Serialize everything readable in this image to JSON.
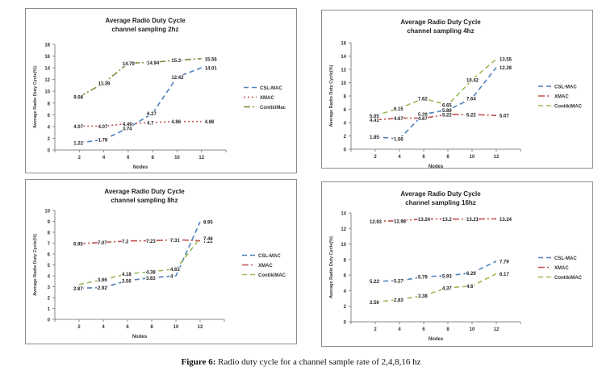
{
  "caption": {
    "label": "Figure 6:",
    "text": "Radio duty cycle for a channel sample rate of 2,4,8,16 hz"
  },
  "chart_data": [
    {
      "type": "line",
      "title": "Average Radio Duty Cycle",
      "subtitle": "channel sampling 2hz",
      "xlabel": "Nodes",
      "ylabel": "Average Radio Duty Cycle(%)",
      "x": [
        2,
        4,
        6,
        8,
        10,
        12
      ],
      "xticks": [
        "2",
        "4",
        "6",
        "8",
        "10",
        "12"
      ],
      "yticks": [
        "0",
        "2",
        "4",
        "6",
        "8",
        "10",
        "12",
        "14",
        "16",
        "18"
      ],
      "ylim": [
        0,
        18
      ],
      "grid": false,
      "legend": "right",
      "series": [
        {
          "name": "CSL-MAC",
          "color": "#4f81bd",
          "style": "dash",
          "values": [
            1.22,
            1.78,
            3.74,
            6.27,
            12.42,
            14.01
          ],
          "labels": [
            "1.22",
            "1.78",
            "3.74",
            "6.27",
            "12.42",
            "14.01"
          ]
        },
        {
          "name": "XMAC",
          "color": "#c0504d",
          "style": "dot",
          "values": [
            4.07,
            4.07,
            4.49,
            4.7,
            4.86,
            4.86
          ],
          "labels": [
            "4.07",
            "4.07",
            "4.49",
            "4.7",
            "4.86",
            "4.86"
          ]
        },
        {
          "name": "ContikiMac",
          "color": "#77933c",
          "style": "dashdot",
          "values": [
            9.08,
            11.39,
            14.79,
            14.94,
            15.3,
            15.56
          ],
          "labels": [
            "9.08",
            "11.39",
            "14.79",
            "14.94",
            "15.3",
            "15.56"
          ]
        }
      ]
    },
    {
      "type": "line",
      "title": "Average Radio Duty Cycle",
      "subtitle": "channel sampling 4hz",
      "xlabel": "Nodes",
      "ylabel": "Average Radio Duty Cycle(%)",
      "x": [
        2,
        4,
        6,
        8,
        10,
        12
      ],
      "xticks": [
        "2",
        "4",
        "6",
        "8",
        "10",
        "12"
      ],
      "yticks": [
        "0",
        "2",
        "4",
        "6",
        "8",
        "10",
        "12",
        "14",
        "16"
      ],
      "ylim": [
        0,
        16
      ],
      "grid": false,
      "legend": "right",
      "series": [
        {
          "name": "CSL-MAC",
          "color": "#4f81bd",
          "style": "dash",
          "values": [
            1.85,
            1.56,
            5.28,
            5.89,
            7.64,
            12.28
          ],
          "labels": [
            "1.85",
            "1.56",
            "5.28",
            "5.89",
            "7.64",
            "12.28"
          ]
        },
        {
          "name": "XMAC",
          "color": "#c0504d",
          "style": "dashdot",
          "values": [
            4.41,
            4.67,
            4.67,
            5.22,
            5.22,
            5.07
          ],
          "labels": [
            "4.41",
            "4.67",
            "4.67",
            "5.22",
            "5.22",
            "5.07"
          ]
        },
        {
          "name": "ContikiMAC",
          "color": "#9bbb59",
          "style": "dash",
          "values": [
            5.05,
            6.15,
            7.62,
            6.65,
            10.42,
            13.55
          ],
          "labels": [
            "5.05",
            "6.15",
            "7.62",
            "6.65",
            "10.42",
            "13.55"
          ]
        }
      ]
    },
    {
      "type": "line",
      "title": "Average Radio Duty Cycle",
      "subtitle": "channel sampling 8hz",
      "xlabel": "Nodes",
      "ylabel": "Average Radio Duty Cycle(%)",
      "x": [
        2,
        4,
        6,
        8,
        10,
        12
      ],
      "xticks": [
        "2",
        "4",
        "6",
        "8",
        "10",
        "12"
      ],
      "yticks": [
        "0",
        "1",
        "2",
        "3",
        "4",
        "5",
        "6",
        "7",
        "8",
        "9",
        "10"
      ],
      "ylim": [
        0,
        10
      ],
      "grid": false,
      "legend": "right",
      "series": [
        {
          "name": "CSL-MAC",
          "color": "#4f81bd",
          "style": "dash",
          "values": [
            2.87,
            2.92,
            3.56,
            3.83,
            4,
            8.95
          ],
          "labels": [
            "2.87",
            "2.92",
            "3.56",
            "3.83",
            "4",
            "8.95"
          ]
        },
        {
          "name": "XMAC",
          "color": "#c0504d",
          "style": "dashdot",
          "values": [
            6.95,
            7.07,
            7.2,
            7.23,
            7.31,
            7.22
          ],
          "labels": [
            "6.95",
            "7.07",
            "7.2",
            "7.23",
            "7.31",
            "7.22"
          ]
        },
        {
          "name": "ContikiMAC",
          "color": "#9bbb59",
          "style": "dash",
          "values": [
            3.2,
            3.66,
            4.18,
            4.38,
            4.63,
            7.46
          ],
          "labels": [
            "",
            "3.66",
            "4.18",
            "4.38",
            "4.63",
            "7.46"
          ]
        }
      ]
    },
    {
      "type": "line",
      "title": "Average Radio Duty Cycle",
      "subtitle": "channel sampling 16hz",
      "xlabel": "Nodes",
      "ylabel": "Average Radio Duty Cycle(%)",
      "x": [
        2,
        4,
        6,
        8,
        10,
        12
      ],
      "xticks": [
        "2",
        "4",
        "6",
        "8",
        "10",
        "12"
      ],
      "yticks": [
        "0",
        "2",
        "4",
        "6",
        "8",
        "10",
        "12",
        "14"
      ],
      "ylim": [
        0,
        14
      ],
      "grid": false,
      "legend": "right",
      "series": [
        {
          "name": "CSL-MAC",
          "color": "#4f81bd",
          "style": "dash",
          "values": [
            5.22,
            5.27,
            5.79,
            5.93,
            6.29,
            7.79
          ],
          "labels": [
            "5.22",
            "5.27",
            "5.79",
            "5.93",
            "6.29",
            "7.79"
          ]
        },
        {
          "name": "XMAC",
          "color": "#c0504d",
          "style": "dashdot",
          "values": [
            12.93,
            12.98,
            13.24,
            13.2,
            13.21,
            13.24
          ],
          "labels": [
            "12.93",
            "12.98",
            "13.24",
            "13.2",
            "13.21",
            "13.24"
          ]
        },
        {
          "name": "ContikiMAC",
          "color": "#9bbb59",
          "style": "dash",
          "values": [
            2.56,
            2.83,
            3.38,
            4.37,
            4.6,
            6.17
          ],
          "labels": [
            "2.56",
            "2.83",
            "3.38",
            "4.37",
            "4.6",
            "6.17"
          ]
        }
      ]
    }
  ]
}
